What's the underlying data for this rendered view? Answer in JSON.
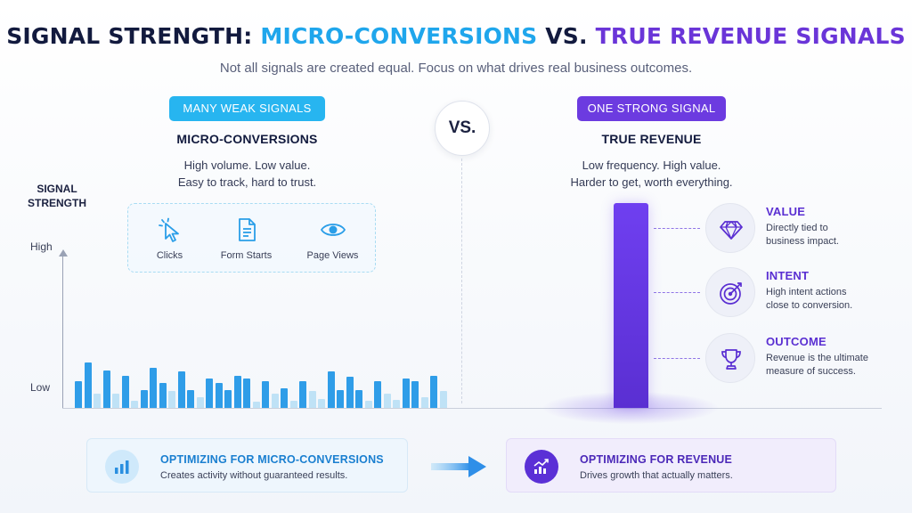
{
  "header": {
    "title_part1": "SIGNAL STRENGTH: ",
    "title_part2": "MICRO-CONVERSIONS",
    "title_part3": " VS. ",
    "title_part4": "TRUE REVENUE SIGNALS",
    "subtitle": "Not all signals are created equal. Focus on what drives real business outcomes."
  },
  "micro": {
    "badge": "MANY WEAK SIGNALS",
    "heading": "MICRO-CONVERSIONS",
    "desc_line1": "High volume. Low value.",
    "desc_line2": "Easy to track, hard to trust.",
    "items": [
      {
        "label": "Clicks",
        "icon": "cursor-click-icon"
      },
      {
        "label": "Form Starts",
        "icon": "document-icon"
      },
      {
        "label": "Page Views",
        "icon": "eye-icon"
      }
    ]
  },
  "vs_label": "VS.",
  "revenue": {
    "badge": "ONE STRONG SIGNAL",
    "heading": "TRUE REVENUE",
    "desc_line1": "Low frequency. High value.",
    "desc_line2": "Harder to get, worth everything.",
    "attributes": [
      {
        "title": "VALUE",
        "desc_line1": "Directly tied to",
        "desc_line2": "business impact.",
        "icon": "diamond-icon"
      },
      {
        "title": "INTENT",
        "desc_line1": "High intent actions",
        "desc_line2": "close to conversion.",
        "icon": "target-icon"
      },
      {
        "title": "OUTCOME",
        "desc_line1": "Revenue is the ultimate",
        "desc_line2": "measure of success.",
        "icon": "trophy-icon"
      }
    ]
  },
  "axis": {
    "title_line1": "SIGNAL",
    "title_line2": "STRENGTH",
    "high": "High",
    "low": "Low"
  },
  "signal_bars": {
    "micro_levels": [
      0.38,
      0.65,
      0.2,
      0.54,
      0.2,
      0.46,
      0.1,
      0.26,
      0.58,
      0.36,
      0.24,
      0.53,
      0.26,
      0.16,
      0.42,
      0.36,
      0.26,
      0.46,
      0.42,
      0.09,
      0.39,
      0.2,
      0.28,
      0.1,
      0.39,
      0.24,
      0.13,
      0.53,
      0.26,
      0.45,
      0.26,
      0.1,
      0.38,
      0.2,
      0.12,
      0.42,
      0.38,
      0.16,
      0.46,
      0.24
    ],
    "revenue_level": 1.0,
    "colors": {
      "micro_strong": "#2f9de8",
      "micro_weak": "#bfe2f6",
      "revenue": "#6a35d8"
    }
  },
  "footer": {
    "left_title": "OPTIMIZING FOR MICRO-CONVERSIONS",
    "left_desc": "Creates activity without guaranteed results.",
    "left_icon": "bar-chart-icon",
    "right_title": "OPTIMIZING FOR REVENUE",
    "right_desc": "Drives growth that actually matters.",
    "right_icon": "trending-up-icon",
    "arrow_icon": "arrow-right-icon"
  }
}
